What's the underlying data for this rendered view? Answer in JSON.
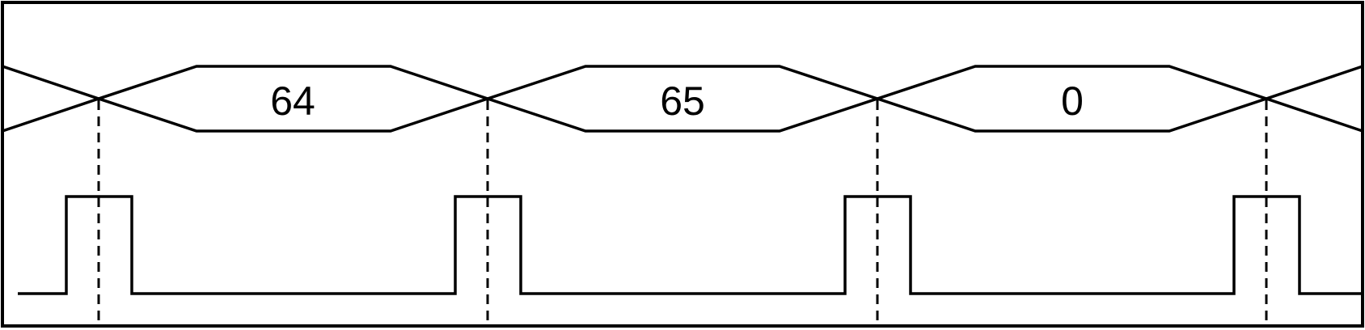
{
  "diagram": {
    "bus_values": [
      "64",
      "65",
      "0"
    ],
    "clock_pulse_count": 4,
    "colors": {
      "stroke": "#000000",
      "background": "#ffffff"
    }
  }
}
